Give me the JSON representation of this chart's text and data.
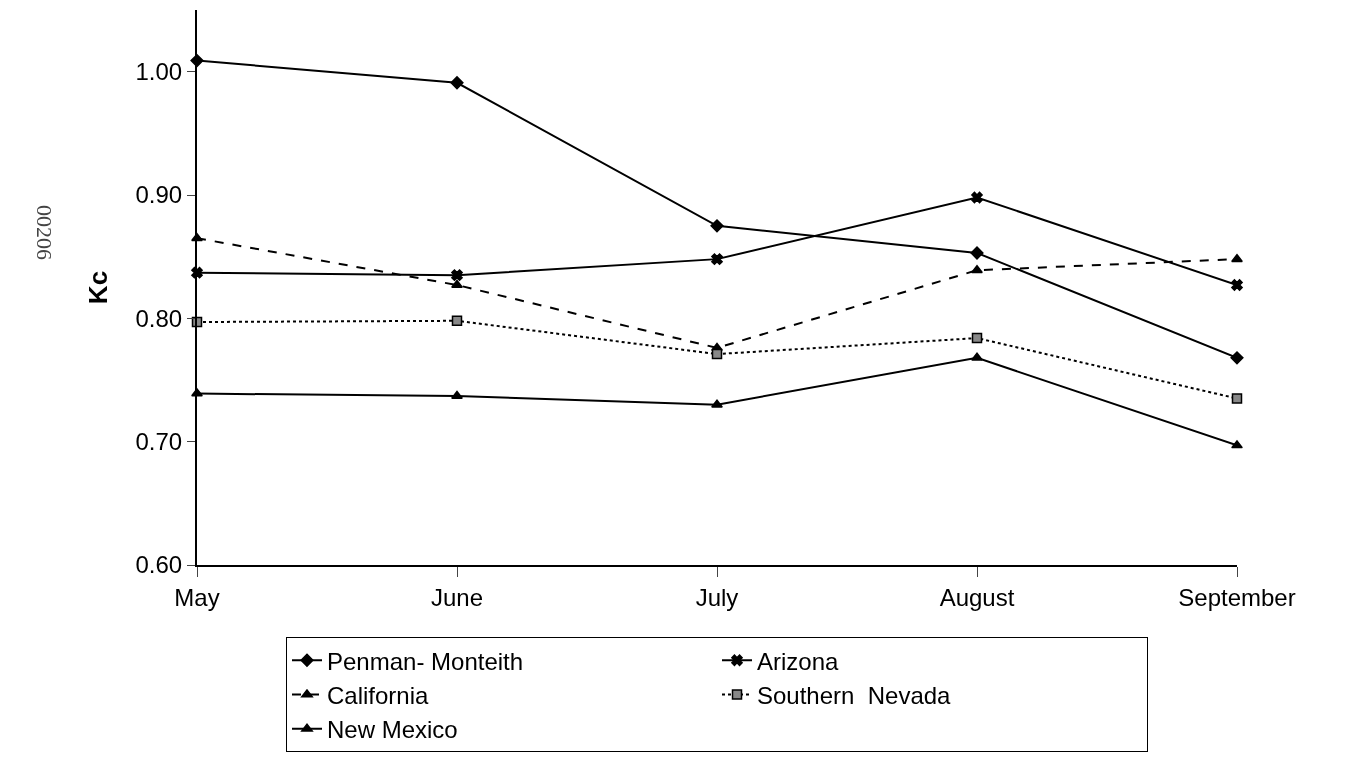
{
  "chart_data": {
    "type": "line",
    "ylabel": "Kc",
    "categories": [
      "May",
      "June",
      "July",
      "August",
      "September"
    ],
    "ylim": [
      0.6,
      1.05
    ],
    "yticks": [
      {
        "value": 0.6,
        "label": "0.60"
      },
      {
        "value": 0.7,
        "label": "0.70"
      },
      {
        "value": 0.8,
        "label": "0.80"
      },
      {
        "value": 0.9,
        "label": "0.90"
      },
      {
        "value": 1.0,
        "label": "1.00"
      }
    ],
    "legend": "bottom",
    "annotations": [
      {
        "text": "00206"
      }
    ],
    "series": [
      {
        "name": "Penman- Monteith",
        "color": "#000000",
        "marker": "diamond",
        "line_style": "solid",
        "values": [
          1.009,
          0.991,
          0.875,
          0.853,
          0.768
        ]
      },
      {
        "name": "Arizona",
        "color": "#000000",
        "marker": "cross",
        "line_style": "solid",
        "values": [
          0.837,
          0.835,
          0.848,
          0.898,
          0.827
        ]
      },
      {
        "name": "California",
        "color": "#000000",
        "marker": "triangle",
        "line_style": "dashed",
        "values": [
          0.865,
          0.827,
          0.776,
          0.839,
          0.848
        ]
      },
      {
        "name": "Southern  Nevada",
        "color": "#000000",
        "marker": "square",
        "line_style": "dotted",
        "values": [
          0.797,
          0.798,
          0.771,
          0.784,
          0.735
        ]
      },
      {
        "name": "New Mexico",
        "color": "#000000",
        "marker": "triangle",
        "line_style": "solid",
        "values": [
          0.739,
          0.737,
          0.73,
          0.768,
          0.697
        ]
      }
    ]
  }
}
